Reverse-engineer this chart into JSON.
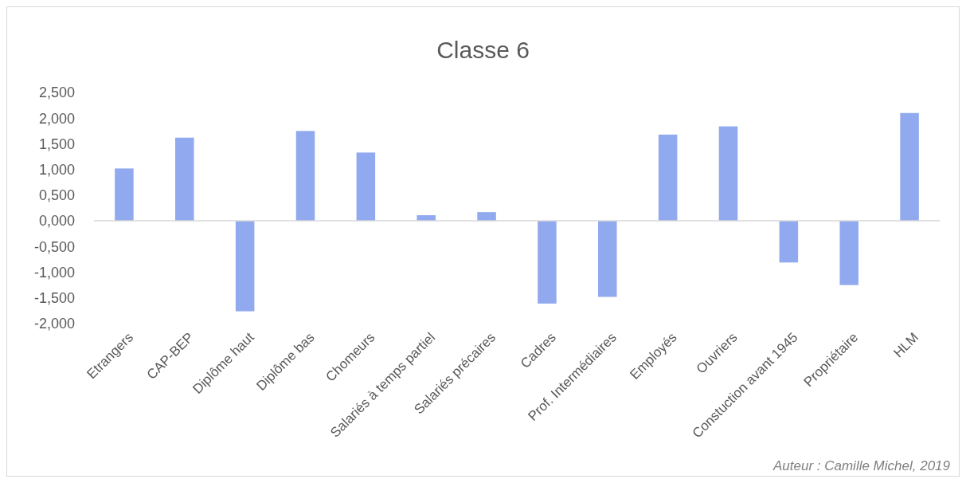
{
  "chart_data": {
    "type": "bar",
    "title": "Classe 6",
    "categories": [
      "Etrangers",
      "CAP-BEP",
      "Diplôme haut",
      "Diplôme bas",
      "Chomeurs",
      "Salariés à temps partiel",
      "Salariés précaires",
      "Cadres",
      "Prof. Intermédiaires",
      "Employés",
      "Ouvriers",
      "Constuction avant 1945",
      "Propriétaire",
      "HLM"
    ],
    "values": [
      1.02,
      1.62,
      -1.76,
      1.75,
      1.33,
      0.11,
      0.17,
      -1.61,
      -1.48,
      1.68,
      1.84,
      -0.81,
      -1.25,
      2.1
    ],
    "color": "#91a9ee",
    "ylim": [
      -2,
      2.5
    ],
    "yticks": [
      {
        "value": -2,
        "label": "-2,000"
      },
      {
        "value": -1.5,
        "label": "-1,500"
      },
      {
        "value": -1,
        "label": "-1,000"
      },
      {
        "value": -0.5,
        "label": "-0,500"
      },
      {
        "value": 0,
        "label": "0,000"
      },
      {
        "value": 0.5,
        "label": "0,500"
      },
      {
        "value": 1,
        "label": "1,000"
      },
      {
        "value": 1.5,
        "label": "1,500"
      },
      {
        "value": 2,
        "label": "2,000"
      },
      {
        "value": 2.5,
        "label": "2,500"
      }
    ],
    "annotations": [
      "Auteur : Camille Michel, 2019"
    ]
  }
}
